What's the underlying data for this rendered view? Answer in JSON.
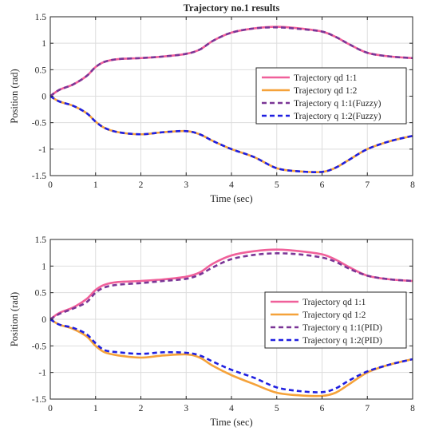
{
  "colors": {
    "qd1": "#f0609a",
    "qd2": "#f5a23a",
    "q1": "#7a3596",
    "q2": "#1f1fe0",
    "grid": "#dddddd",
    "axis": "#262626"
  },
  "chart_data": [
    {
      "type": "line",
      "title": "Trajectory no.1 results",
      "xlabel": "Time (sec)",
      "ylabel": "Position (rad)",
      "xlim": [
        0,
        8
      ],
      "ylim": [
        -1.5,
        1.5
      ],
      "xticks": [
        0,
        1,
        2,
        3,
        4,
        5,
        6,
        7,
        8
      ],
      "yticks": [
        -1.5,
        -1,
        -0.5,
        0,
        0.5,
        1,
        1.5
      ],
      "ytick_labels": [
        "-1.5",
        "-1",
        "-0.5",
        "0",
        "0.5",
        "1",
        "1.5"
      ],
      "grid": true,
      "legend_position": "right",
      "x": [
        0,
        0.2,
        0.5,
        0.8,
        1.0,
        1.2,
        1.5,
        2.0,
        2.5,
        3.0,
        3.3,
        3.6,
        4.0,
        4.5,
        5.0,
        5.5,
        6.0,
        6.3,
        6.6,
        7.0,
        7.5,
        8.0
      ],
      "series": [
        {
          "name": "Trajectory qd 1:1",
          "color_key": "qd1",
          "style": "solid",
          "values": [
            0,
            0.12,
            0.22,
            0.38,
            0.55,
            0.65,
            0.7,
            0.72,
            0.75,
            0.8,
            0.88,
            1.05,
            1.2,
            1.28,
            1.31,
            1.28,
            1.22,
            1.12,
            0.98,
            0.82,
            0.75,
            0.72
          ]
        },
        {
          "name": "Trajectory qd 1:2",
          "color_key": "qd2",
          "style": "solid",
          "values": [
            0,
            -0.1,
            -0.18,
            -0.32,
            -0.48,
            -0.6,
            -0.68,
            -0.72,
            -0.68,
            -0.66,
            -0.72,
            -0.85,
            -1.0,
            -1.15,
            -1.36,
            -1.42,
            -1.43,
            -1.35,
            -1.2,
            -1.0,
            -0.85,
            -0.75
          ]
        },
        {
          "name": "Trajectory q 1:1(Fuzzy)",
          "color_key": "q1",
          "style": "dashed",
          "values": [
            0,
            0.12,
            0.22,
            0.38,
            0.55,
            0.65,
            0.7,
            0.72,
            0.75,
            0.8,
            0.88,
            1.05,
            1.2,
            1.28,
            1.3,
            1.27,
            1.22,
            1.12,
            0.98,
            0.82,
            0.75,
            0.72
          ]
        },
        {
          "name": "Trajectory q 1:2(Fuzzy)",
          "color_key": "q2",
          "style": "dashed",
          "values": [
            0,
            -0.1,
            -0.18,
            -0.32,
            -0.48,
            -0.6,
            -0.68,
            -0.72,
            -0.68,
            -0.66,
            -0.72,
            -0.85,
            -1.0,
            -1.15,
            -1.36,
            -1.42,
            -1.43,
            -1.35,
            -1.2,
            -1.0,
            -0.85,
            -0.75
          ]
        }
      ]
    },
    {
      "type": "line",
      "title": "",
      "xlabel": "Time (sec)",
      "ylabel": "Position (rad)",
      "xlim": [
        0,
        8
      ],
      "ylim": [
        -1.5,
        1.5
      ],
      "xticks": [
        0,
        1,
        2,
        3,
        4,
        5,
        6,
        7,
        8
      ],
      "yticks": [
        -1.5,
        -1,
        -0.5,
        0,
        0.5,
        1,
        1.5
      ],
      "ytick_labels": [
        "-1.5",
        "-1",
        "-0.5",
        "0",
        "0.5",
        "1",
        "1.5"
      ],
      "grid": true,
      "legend_position": "right",
      "x": [
        0,
        0.2,
        0.5,
        0.8,
        1.0,
        1.2,
        1.5,
        2.0,
        2.5,
        3.0,
        3.3,
        3.6,
        4.0,
        4.5,
        5.0,
        5.5,
        6.0,
        6.3,
        6.6,
        7.0,
        7.5,
        8.0
      ],
      "series": [
        {
          "name": "Trajectory qd 1:1",
          "color_key": "qd1",
          "style": "solid",
          "values": [
            0,
            0.12,
            0.22,
            0.38,
            0.55,
            0.65,
            0.7,
            0.72,
            0.75,
            0.8,
            0.88,
            1.05,
            1.2,
            1.28,
            1.31,
            1.28,
            1.22,
            1.12,
            0.98,
            0.82,
            0.75,
            0.72
          ]
        },
        {
          "name": "Trajectory qd 1:2",
          "color_key": "qd2",
          "style": "solid",
          "values": [
            0,
            -0.1,
            -0.18,
            -0.32,
            -0.5,
            -0.62,
            -0.68,
            -0.72,
            -0.68,
            -0.66,
            -0.72,
            -0.88,
            -1.05,
            -1.22,
            -1.38,
            -1.43,
            -1.44,
            -1.38,
            -1.22,
            -1.0,
            -0.85,
            -0.75
          ]
        },
        {
          "name": "Trajectory q 1:1(PID)",
          "color_key": "q1",
          "style": "dashed",
          "values": [
            0,
            0.1,
            0.2,
            0.32,
            0.5,
            0.6,
            0.65,
            0.68,
            0.72,
            0.76,
            0.84,
            0.98,
            1.13,
            1.21,
            1.24,
            1.22,
            1.16,
            1.08,
            0.95,
            0.82,
            0.75,
            0.72
          ]
        },
        {
          "name": "Trajectory q 1:2(PID)",
          "color_key": "q2",
          "style": "dashed",
          "values": [
            0,
            -0.1,
            -0.16,
            -0.28,
            -0.45,
            -0.58,
            -0.62,
            -0.65,
            -0.62,
            -0.63,
            -0.68,
            -0.8,
            -0.95,
            -1.1,
            -1.28,
            -1.35,
            -1.37,
            -1.3,
            -1.15,
            -0.98,
            -0.85,
            -0.75
          ]
        }
      ]
    }
  ]
}
